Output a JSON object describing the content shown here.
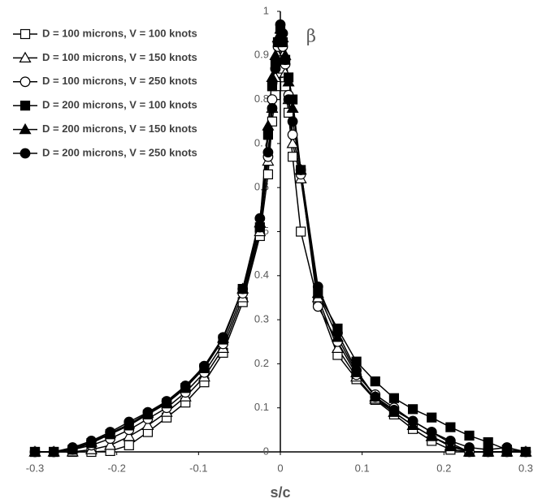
{
  "chart_data": {
    "type": "line",
    "x_label": "s/c",
    "y_label": "β",
    "x": [
      -0.3,
      -0.277,
      -0.254,
      -0.231,
      -0.208,
      -0.185,
      -0.162,
      -0.139,
      -0.116,
      -0.093,
      -0.07,
      -0.046,
      -0.025,
      -0.015,
      -0.01,
      -0.006,
      -0.003,
      0,
      0.003,
      0.006,
      0.01,
      0.015,
      0.025,
      0.046,
      0.07,
      0.093,
      0.116,
      0.139,
      0.162,
      0.185,
      0.208,
      0.231,
      0.254,
      0.277,
      0.3
    ],
    "series": [
      {
        "name": "D = 100 microns, V = 100 knots",
        "color": "#000000",
        "marker": "square",
        "filled": false,
        "values": [
          0,
          0,
          0,
          0,
          0.002,
          0.015,
          0.045,
          0.078,
          0.112,
          0.158,
          0.225,
          0.34,
          0.49,
          0.63,
          0.75,
          0.81,
          0.86,
          0.88,
          0.87,
          0.83,
          0.77,
          0.67,
          0.5,
          0.34,
          0.22,
          0.165,
          0.118,
          0.085,
          0.052,
          0.025,
          0.005,
          0,
          0,
          0,
          0
        ]
      },
      {
        "name": "D = 100 microns, V = 150 knots",
        "color": "#000000",
        "marker": "triangle",
        "filled": false,
        "values": [
          0,
          0,
          0,
          0.005,
          0.015,
          0.035,
          0.06,
          0.09,
          0.125,
          0.17,
          0.235,
          0.35,
          0.5,
          0.66,
          0.78,
          0.85,
          0.9,
          0.92,
          0.9,
          0.86,
          0.8,
          0.7,
          0.62,
          0.35,
          0.235,
          0.17,
          0.12,
          0.09,
          0.06,
          0.035,
          0.015,
          0,
          0,
          0,
          0
        ]
      },
      {
        "name": "D = 100 microns, V = 250 knots",
        "color": "#000000",
        "marker": "circle",
        "filled": false,
        "values": [
          0,
          0,
          0.005,
          0.015,
          0.03,
          0.05,
          0.075,
          0.1,
          0.135,
          0.18,
          0.245,
          0.36,
          0.51,
          0.67,
          0.8,
          0.87,
          0.92,
          0.94,
          0.92,
          0.88,
          0.81,
          0.72,
          0.63,
          0.33,
          0.25,
          0.175,
          0.13,
          0.1,
          0.07,
          0.045,
          0.02,
          0,
          0,
          0,
          0
        ]
      },
      {
        "name": "D = 200 microns, V = 100 knots",
        "color": "#000000",
        "marker": "square",
        "filled": true,
        "values": [
          0,
          0,
          0.005,
          0.02,
          0.04,
          0.06,
          0.085,
          0.11,
          0.145,
          0.19,
          0.255,
          0.37,
          0.51,
          0.72,
          0.83,
          0.88,
          0.93,
          0.96,
          0.93,
          0.89,
          0.85,
          0.8,
          0.64,
          0.36,
          0.28,
          0.205,
          0.16,
          0.122,
          0.097,
          0.078,
          0.056,
          0.037,
          0.022,
          0.005,
          0
        ]
      },
      {
        "name": "D = 200 microns, V = 150 knots",
        "color": "#000000",
        "marker": "triangle",
        "filled": true,
        "values": [
          0,
          0,
          0.008,
          0.022,
          0.042,
          0.063,
          0.088,
          0.112,
          0.148,
          0.192,
          0.258,
          0.37,
          0.52,
          0.74,
          0.85,
          0.9,
          0.94,
          0.96,
          0.94,
          0.9,
          0.84,
          0.78,
          0.64,
          0.36,
          0.26,
          0.18,
          0.125,
          0.09,
          0.06,
          0.035,
          0.012,
          0,
          0,
          0,
          0
        ]
      },
      {
        "name": "D = 200 microns, V = 250 knots",
        "color": "#000000",
        "marker": "circle",
        "filled": true,
        "values": [
          0,
          0,
          0.01,
          0.025,
          0.045,
          0.068,
          0.09,
          0.115,
          0.15,
          0.195,
          0.26,
          0.37,
          0.53,
          0.68,
          0.78,
          0.87,
          0.93,
          0.97,
          0.95,
          0.89,
          0.8,
          0.75,
          0.64,
          0.375,
          0.27,
          0.185,
          0.125,
          0.095,
          0.07,
          0.045,
          0.025,
          0.01,
          0.005,
          0.01,
          0
        ]
      }
    ],
    "xlim": [
      -0.3,
      0.3
    ],
    "xticks": [
      -0.3,
      -0.2,
      -0.1,
      0,
      0.1,
      0.2,
      0.3
    ],
    "ylim": [
      0,
      1
    ],
    "yticks": [
      0,
      0.1,
      0.2,
      0.3,
      0.4,
      0.5,
      0.6,
      0.7,
      0.8,
      0.9,
      1
    ],
    "grid": false,
    "legend": "upper left"
  }
}
